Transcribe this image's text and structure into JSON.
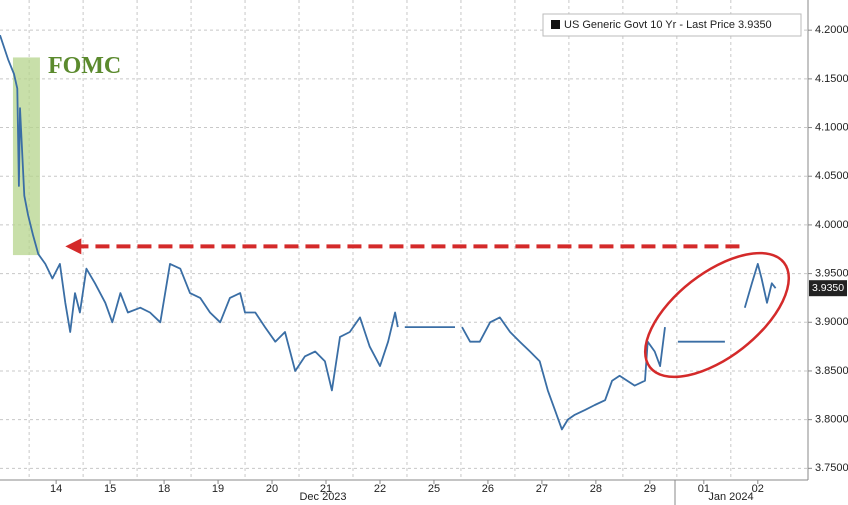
{
  "chart_data": {
    "type": "line",
    "legend": "US Generic Govt 10 Yr - Last Price 3.9350",
    "last_price": {
      "value": 3.935,
      "label": "3.9350"
    },
    "annotation": "FOMC",
    "fomc_band": {
      "x": [
        -0.3,
        0.2
      ],
      "y": [
        3.969,
        4.172
      ]
    },
    "arrow": {
      "x": [
        13.16,
        0.67
      ],
      "y": 3.978
    },
    "period_labels": [
      "Dec 2023",
      "Jan 2024"
    ],
    "xlim": [
      -0.54,
      14.43
    ],
    "ylim": [
      3.738,
      4.231
    ],
    "xticks": [
      {
        "value": 0.5,
        "label": "14"
      },
      {
        "value": 1.5,
        "label": "15"
      },
      {
        "value": 2.5,
        "label": "18"
      },
      {
        "value": 3.5,
        "label": "19"
      },
      {
        "value": 4.5,
        "label": "20"
      },
      {
        "value": 5.5,
        "label": "21"
      },
      {
        "value": 6.5,
        "label": "22"
      },
      {
        "value": 7.5,
        "label": "25"
      },
      {
        "value": 8.5,
        "label": "26"
      },
      {
        "value": 9.5,
        "label": "27"
      },
      {
        "value": 10.5,
        "label": "28"
      },
      {
        "value": 11.5,
        "label": "29"
      },
      {
        "value": 12.5,
        "label": "01"
      },
      {
        "value": 13.5,
        "label": "02"
      }
    ],
    "yticks": [
      {
        "value": 3.75,
        "label": "3.7500"
      },
      {
        "value": 3.8,
        "label": "3.8000"
      },
      {
        "value": 3.85,
        "label": "3.8500"
      },
      {
        "value": 3.9,
        "label": "3.9000"
      },
      {
        "value": 3.95,
        "label": "3.9500"
      },
      {
        "value": 4.0,
        "label": "4.0000"
      },
      {
        "value": 4.05,
        "label": "4.0500"
      },
      {
        "value": 4.1,
        "label": "4.1000"
      },
      {
        "value": 4.15,
        "label": "4.1500"
      },
      {
        "value": 4.2,
        "label": "4.2000"
      }
    ],
    "grid": true,
    "series": [
      {
        "name": "US Generic Govt 10 Yr - Last Price 3.9350",
        "color": "#3a6ea5",
        "x": [
          -0.54,
          -0.39,
          -0.28,
          -0.22,
          -0.19,
          -0.17,
          -0.09,
          -0.02,
          0.07,
          0.17,
          0.3,
          0.43,
          0.57,
          0.67,
          0.76,
          0.85,
          0.94,
          1.06,
          1.22,
          1.41,
          1.54,
          1.69,
          1.83,
          2.06,
          2.24,
          2.43,
          2.61,
          2.8,
          2.98,
          3.17,
          3.35,
          3.54,
          3.72,
          3.91,
          4.0,
          4.19,
          4.37,
          4.56,
          4.74,
          4.93,
          5.11,
          5.3,
          5.48,
          5.61,
          5.76,
          5.94,
          6.13,
          6.31,
          6.5,
          6.65,
          6.78,
          6.83,
          6.9,
          6.96,
          7.89,
          7.95,
          8.02,
          8.17,
          8.35,
          8.54,
          8.72,
          8.91,
          9.09,
          9.28,
          9.46,
          9.61,
          9.74,
          9.87,
          9.98,
          10.11,
          10.3,
          10.48,
          10.67,
          10.8,
          10.94,
          11.22,
          11.41,
          11.46,
          11.59,
          11.69,
          11.78,
          11.85,
          12.02,
          12.89,
          12.95,
          13.26,
          13.39,
          13.5,
          13.57,
          13.67,
          13.76,
          13.83
        ],
        "values": [
          4.195,
          4.17,
          4.155,
          4.14,
          4.04,
          4.12,
          4.03,
          4.01,
          3.99,
          3.97,
          3.96,
          3.945,
          3.96,
          3.92,
          3.89,
          3.93,
          3.91,
          3.955,
          3.94,
          3.92,
          3.9,
          3.93,
          3.91,
          3.915,
          3.91,
          3.9,
          3.96,
          3.955,
          3.93,
          3.925,
          3.91,
          3.9,
          3.925,
          3.93,
          3.91,
          3.91,
          3.895,
          3.88,
          3.89,
          3.85,
          3.865,
          3.87,
          3.86,
          3.83,
          3.885,
          3.89,
          3.905,
          3.875,
          3.855,
          3.88,
          3.91,
          3.895,
          null,
          3.895,
          3.895,
          null,
          3.895,
          3.88,
          3.88,
          3.9,
          3.905,
          3.89,
          3.88,
          3.87,
          3.86,
          3.83,
          3.81,
          3.79,
          3.8,
          3.805,
          3.81,
          3.815,
          3.82,
          3.84,
          3.845,
          3.835,
          3.84,
          3.88,
          3.87,
          3.855,
          3.895,
          null,
          3.88,
          3.88,
          null,
          3.915,
          3.94,
          3.96,
          3.945,
          3.92,
          3.94,
          3.935
        ]
      }
    ]
  }
}
